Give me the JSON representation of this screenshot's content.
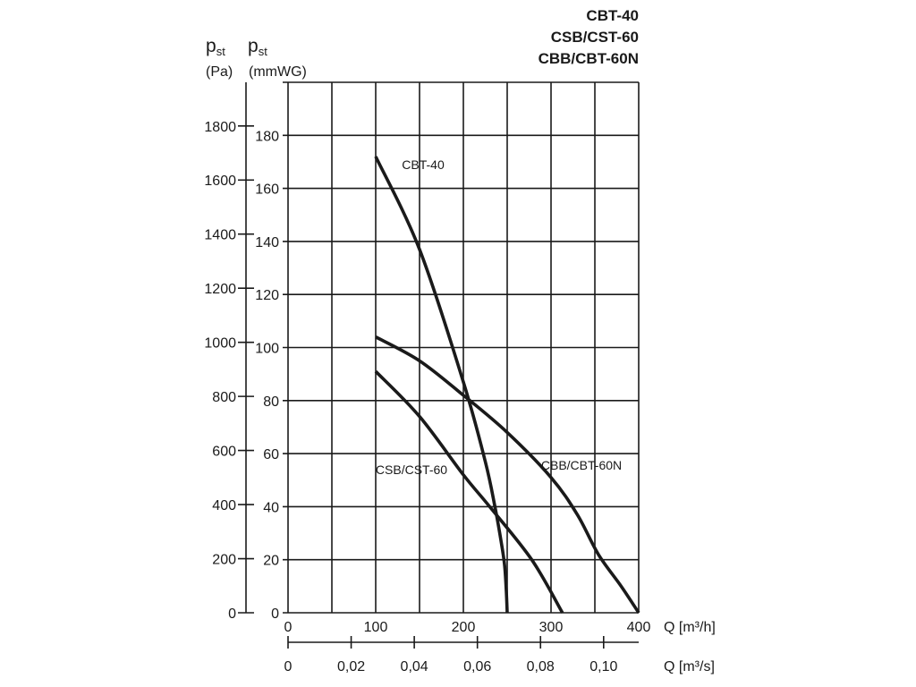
{
  "chart_data": {
    "type": "line",
    "title_lines": [
      "CBT-40",
      "CSB/CST-60",
      "CBB/CBT-60N"
    ],
    "y_left_label": {
      "symbol": "p",
      "sub": "st",
      "unit": "(Pa)"
    },
    "y_right_label": {
      "symbol": "p",
      "sub": "st",
      "unit": "(mmWG)"
    },
    "xlabel": "Q [m³/h]",
    "xlabel2": "Q [m³/s]",
    "xlim": [
      0,
      400
    ],
    "ylim_mmwg": [
      0,
      200
    ],
    "x_ticks": [
      0,
      100,
      200,
      300,
      400
    ],
    "x_grid_step": 50,
    "y_ticks_mmwg": [
      0,
      20,
      40,
      60,
      80,
      100,
      120,
      140,
      160,
      180
    ],
    "y_ticks_pa": [
      0,
      200,
      400,
      600,
      800,
      1000,
      1200,
      1400,
      1600,
      1800
    ],
    "x2_ticks": [
      0,
      0.02,
      0.04,
      0.06,
      0.08,
      0.1
    ],
    "x2_tick_labels": [
      "0",
      "0,02",
      "0,04",
      "0,06",
      "0,08",
      "0,10"
    ],
    "grid": true,
    "line_color": "#1a1a1a",
    "series": [
      {
        "name": "CBT-40",
        "x": [
          100,
          150,
          200,
          225,
          236,
          243,
          247,
          249,
          250
        ],
        "y": [
          172,
          137,
          87,
          57,
          40,
          27,
          18,
          8,
          0
        ]
      },
      {
        "name": "CSB/CST-60",
        "x": [
          100,
          150,
          200,
          230,
          278,
          313
        ],
        "y": [
          91,
          74,
          52,
          40,
          20,
          0
        ]
      },
      {
        "name": "CBB/CBT-60N",
        "x": [
          100,
          150,
          200,
          250,
          300,
          330,
          354,
          380,
          400
        ],
        "y": [
          104,
          95,
          82,
          68,
          51,
          37,
          22,
          10,
          0
        ]
      }
    ]
  }
}
